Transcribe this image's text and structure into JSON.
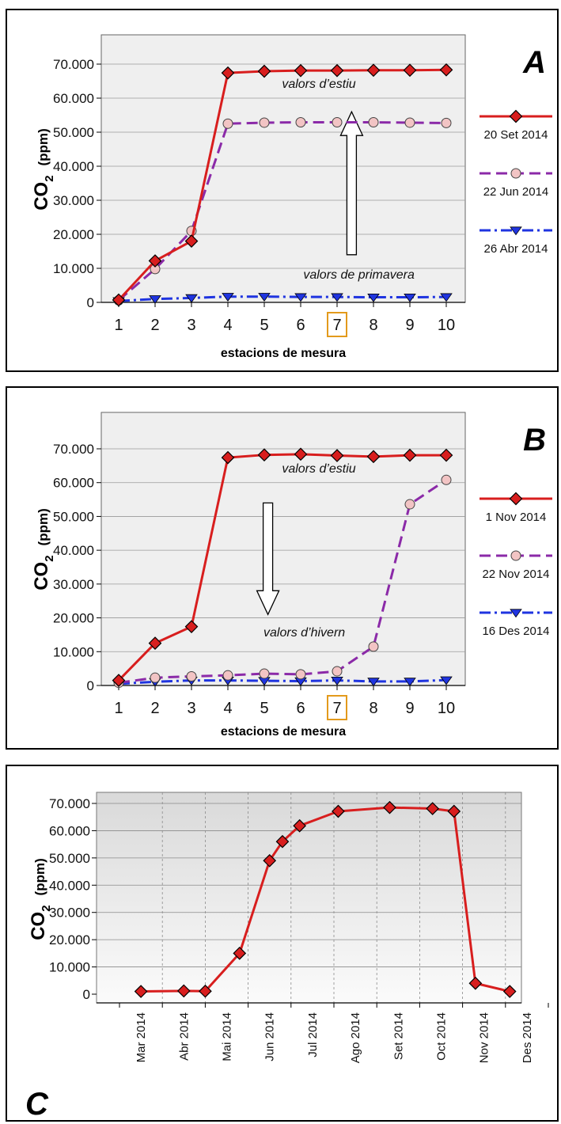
{
  "chart_data": [
    {
      "panel": "A",
      "type": "line",
      "xlabel": "estacions de mesura",
      "ylabel": "CO2 (ppm)",
      "ylim": [
        0,
        75000
      ],
      "yticks": [
        "0",
        "10.000",
        "20.000",
        "30.000",
        "40.000",
        "50.000",
        "60.000",
        "70.000"
      ],
      "grid": true,
      "legend": "right",
      "highlighted_x": "7",
      "x": [
        1,
        2,
        3,
        4,
        5,
        6,
        7,
        8,
        9,
        10
      ],
      "series": [
        {
          "name": "20 Set 2014",
          "color": "#d81e1e",
          "dash": "solid",
          "marker": "diamond",
          "values": [
            700,
            12200,
            18000,
            67400,
            67900,
            68100,
            68100,
            68200,
            68200,
            68300
          ]
        },
        {
          "name": "22 Jun 2014",
          "color": "#8b2aa8",
          "dash": "dash",
          "marker": "circle",
          "values": [
            600,
            9800,
            21000,
            52500,
            52800,
            52900,
            52900,
            52900,
            52800,
            52700
          ]
        },
        {
          "name": "26 Abr 2014",
          "color": "#1f34e0",
          "dash": "dashdot",
          "marker": "triangle-down",
          "values": [
            400,
            1000,
            1300,
            1700,
            1700,
            1600,
            1600,
            1500,
            1500,
            1600
          ]
        }
      ],
      "annotations": [
        {
          "text": "valors d’estiu",
          "x": 6.5,
          "y": 63000
        },
        {
          "text": "valors de primavera",
          "x": 7.6,
          "y": 7000
        }
      ],
      "arrow": {
        "direction": "up",
        "x": 7.4,
        "from": 14000,
        "to": 56000
      }
    },
    {
      "panel": "B",
      "type": "line",
      "xlabel": "estacions de mesura",
      "ylabel": "CO2 (ppm)",
      "ylim": [
        0,
        75000
      ],
      "yticks": [
        "0",
        "10.000",
        "20.000",
        "30.000",
        "40.000",
        "50.000",
        "60.000",
        "70.000"
      ],
      "grid": true,
      "legend": "right",
      "highlighted_x": "7",
      "x": [
        1,
        2,
        3,
        4,
        5,
        6,
        7,
        8,
        9,
        10
      ],
      "series": [
        {
          "name": "1 Nov  2014",
          "color": "#d81e1e",
          "dash": "solid",
          "marker": "diamond",
          "values": [
            1500,
            12500,
            17400,
            67400,
            68200,
            68400,
            68000,
            67700,
            68100,
            68100
          ]
        },
        {
          "name": "22 Nov 2014",
          "color": "#8b2aa8",
          "dash": "dash",
          "marker": "circle",
          "values": [
            800,
            2300,
            2700,
            3000,
            3500,
            3300,
            4200,
            11500,
            53600,
            60800
          ]
        },
        {
          "name": "16 Des 2014",
          "color": "#1f34e0",
          "dash": "dashdot",
          "marker": "triangle-down",
          "values": [
            500,
            1100,
            1500,
            1500,
            1400,
            1300,
            1500,
            1200,
            1200,
            1600
          ]
        }
      ],
      "annotations": [
        {
          "text": "valors d’estiu",
          "x": 6.5,
          "y": 63000
        },
        {
          "text": "valors d’hivern",
          "x": 6.1,
          "y": 14500
        }
      ],
      "arrow": {
        "direction": "down",
        "x": 5.1,
        "from": 54000,
        "to": 21000
      }
    },
    {
      "panel": "C",
      "type": "line",
      "xlabel": "",
      "ylabel": "CO2 (ppm)",
      "ylim": [
        0,
        78000
      ],
      "yticks": [
        "0",
        "10.000",
        "20.000",
        "30.000",
        "40.000",
        "50.000",
        "60.000",
        "70.000"
      ],
      "grid": true,
      "categories": [
        "Mar 2014",
        "Abr 2014",
        "Mai  2014",
        "Jun 2014",
        "Jul 2014",
        "Ago 2014",
        "Set  2014",
        "Oct 2014",
        "Nov 2014",
        "Des 2014"
      ],
      "series": [
        {
          "name": "",
          "color": "#d81e1e",
          "dash": "solid",
          "marker": "diamond",
          "points": [
            [
              0.5,
              1000
            ],
            [
              1.5,
              1200
            ],
            [
              2.0,
              1100
            ],
            [
              2.8,
              15000
            ],
            [
              3.5,
              49000
            ],
            [
              3.8,
              56000
            ],
            [
              4.2,
              61800
            ],
            [
              5.1,
              67100
            ],
            [
              6.3,
              68500
            ],
            [
              7.3,
              68100
            ],
            [
              7.8,
              67100
            ],
            [
              8.3,
              4000
            ],
            [
              9.1,
              1000
            ]
          ]
        }
      ]
    }
  ],
  "legends": {
    "a": [
      {
        "label": "20 Set 2014"
      },
      {
        "label": "22 Jun 2014"
      },
      {
        "label": "26 Abr 2014"
      }
    ],
    "b": [
      {
        "label": "1 Nov  2014"
      },
      {
        "label": "22 Nov 2014"
      },
      {
        "label": "16 Des 2014"
      }
    ]
  },
  "panels": {
    "a": {
      "letter": "A",
      "xtitle": "estacions de mesura",
      "ylabel_main": "CO",
      "ylabel_sub": "2",
      "ylabel_unit": "(ppm)",
      "annot1": "valors d’estiu",
      "annot2": "valors de primavera"
    },
    "b": {
      "letter": "B",
      "xtitle": "estacions de mesura",
      "ylabel_main": "CO",
      "ylabel_sub": "2",
      "ylabel_unit": "(ppm)",
      "annot1": "valors d’estiu",
      "annot2": "valors d’hivern"
    },
    "c": {
      "letter": "C",
      "ylabel_main": "CO",
      "ylabel_sub": "2",
      "ylabel_unit": "(ppm)"
    }
  },
  "colors": {
    "red": "#d81e1e",
    "purple": "#8b2aa8",
    "blue": "#1f34e0",
    "highlight": "#e39a1c",
    "marker_pink": "#f2c4c4"
  }
}
